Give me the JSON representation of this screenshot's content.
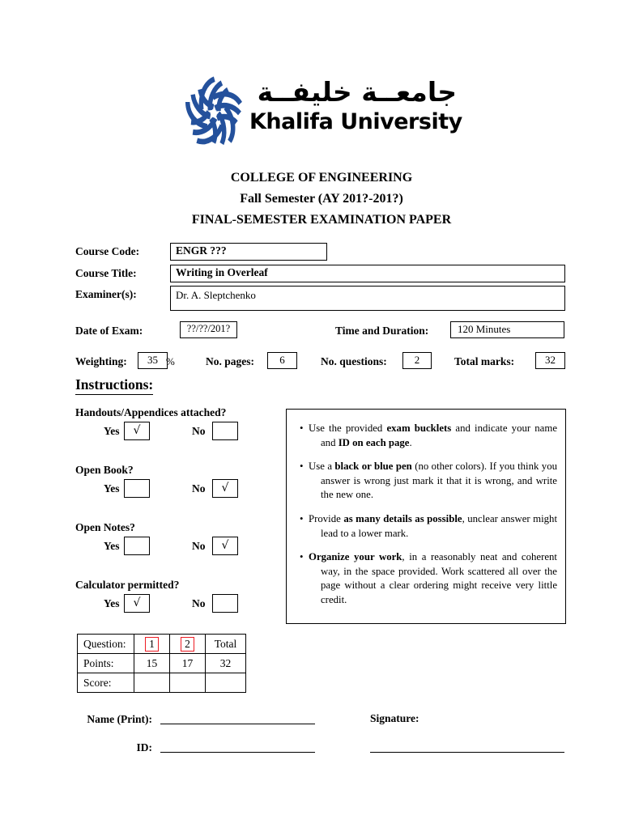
{
  "logo": {
    "arabic": "جامعــة خليفــة",
    "english": "Khalifa University",
    "brand_blue": "#24519c",
    "icon": "khalifa-university-knot-icon"
  },
  "header": {
    "line1": "COLLEGE OF ENGINEERING",
    "line2": "Fall Semester (AY 201?-201?)",
    "line3": "FINAL-SEMESTER EXAMINATION PAPER"
  },
  "course_fields": {
    "course_code": {
      "label": "Course Code:",
      "value": "ENGR ???"
    },
    "course_title": {
      "label": "Course Title:",
      "value": "Writing in Overleaf"
    },
    "examiners": {
      "label": "Examiner(s):",
      "value": "Dr. A. Sleptchenko"
    }
  },
  "exam_meta": {
    "date_label": "Date of Exam:",
    "date_value": "??/??/201?",
    "duration_label": "Time and Duration:",
    "duration_value": "120 Minutes",
    "weighting_label": "Weighting:",
    "weighting_value": "35",
    "weighting_unit": "%",
    "pages_label": "No. pages:",
    "pages_value": "6",
    "questions_label": "No. questions:",
    "questions_value": "2",
    "marks_label": "Total marks:",
    "marks_value": "32"
  },
  "instructions": {
    "heading": "Instructions:",
    "yes_label": "Yes",
    "no_label": "No",
    "checkmark": "√",
    "questions": [
      {
        "label": "Handouts/Appendices attached?",
        "yes": true,
        "no": false
      },
      {
        "label": "Open Book?",
        "yes": false,
        "no": true
      },
      {
        "label": "Open Notes?",
        "yes": false,
        "no": true
      },
      {
        "label": "Calculator permitted?",
        "yes": true,
        "no": false
      }
    ],
    "bullets": [
      [
        {
          "t": "Use the provided "
        },
        {
          "t": "exam bucklets",
          "b": true
        },
        {
          "t": " and indicate your name and "
        },
        {
          "t": "ID on each page",
          "b": true
        },
        {
          "t": "."
        }
      ],
      [
        {
          "t": "Use a "
        },
        {
          "t": "black or blue pen",
          "b": true
        },
        {
          "t": " (no other colors). If you think you answer is wrong just mark it that it is wrong, and write the new one."
        }
      ],
      [
        {
          "t": "Provide "
        },
        {
          "t": "as many details as possible",
          "b": true
        },
        {
          "t": ", unclear answer might lead to a lower mark."
        }
      ],
      [
        {
          "t": "Organize your work",
          "b": true
        },
        {
          "t": ", in a reasonably neat and coherent way, in the space provided. Work scattered all over the page without a clear ordering might receive very little credit."
        }
      ]
    ]
  },
  "score_table": {
    "link_border_color": "#ed1c24",
    "rows": [
      {
        "cells": [
          {
            "t": "Question:"
          },
          {
            "t": "1",
            "link": true
          },
          {
            "t": "2",
            "link": true
          },
          {
            "t": "Total"
          }
        ]
      },
      {
        "cells": [
          {
            "t": "Points:"
          },
          {
            "t": "15"
          },
          {
            "t": "17"
          },
          {
            "t": "32"
          }
        ]
      },
      {
        "cells": [
          {
            "t": "Score:"
          },
          {
            "t": ""
          },
          {
            "t": ""
          },
          {
            "t": ""
          }
        ]
      }
    ]
  },
  "signature_block": {
    "name_label": "Name (Print):",
    "signature_label": "Signature:",
    "id_label": "ID:"
  }
}
